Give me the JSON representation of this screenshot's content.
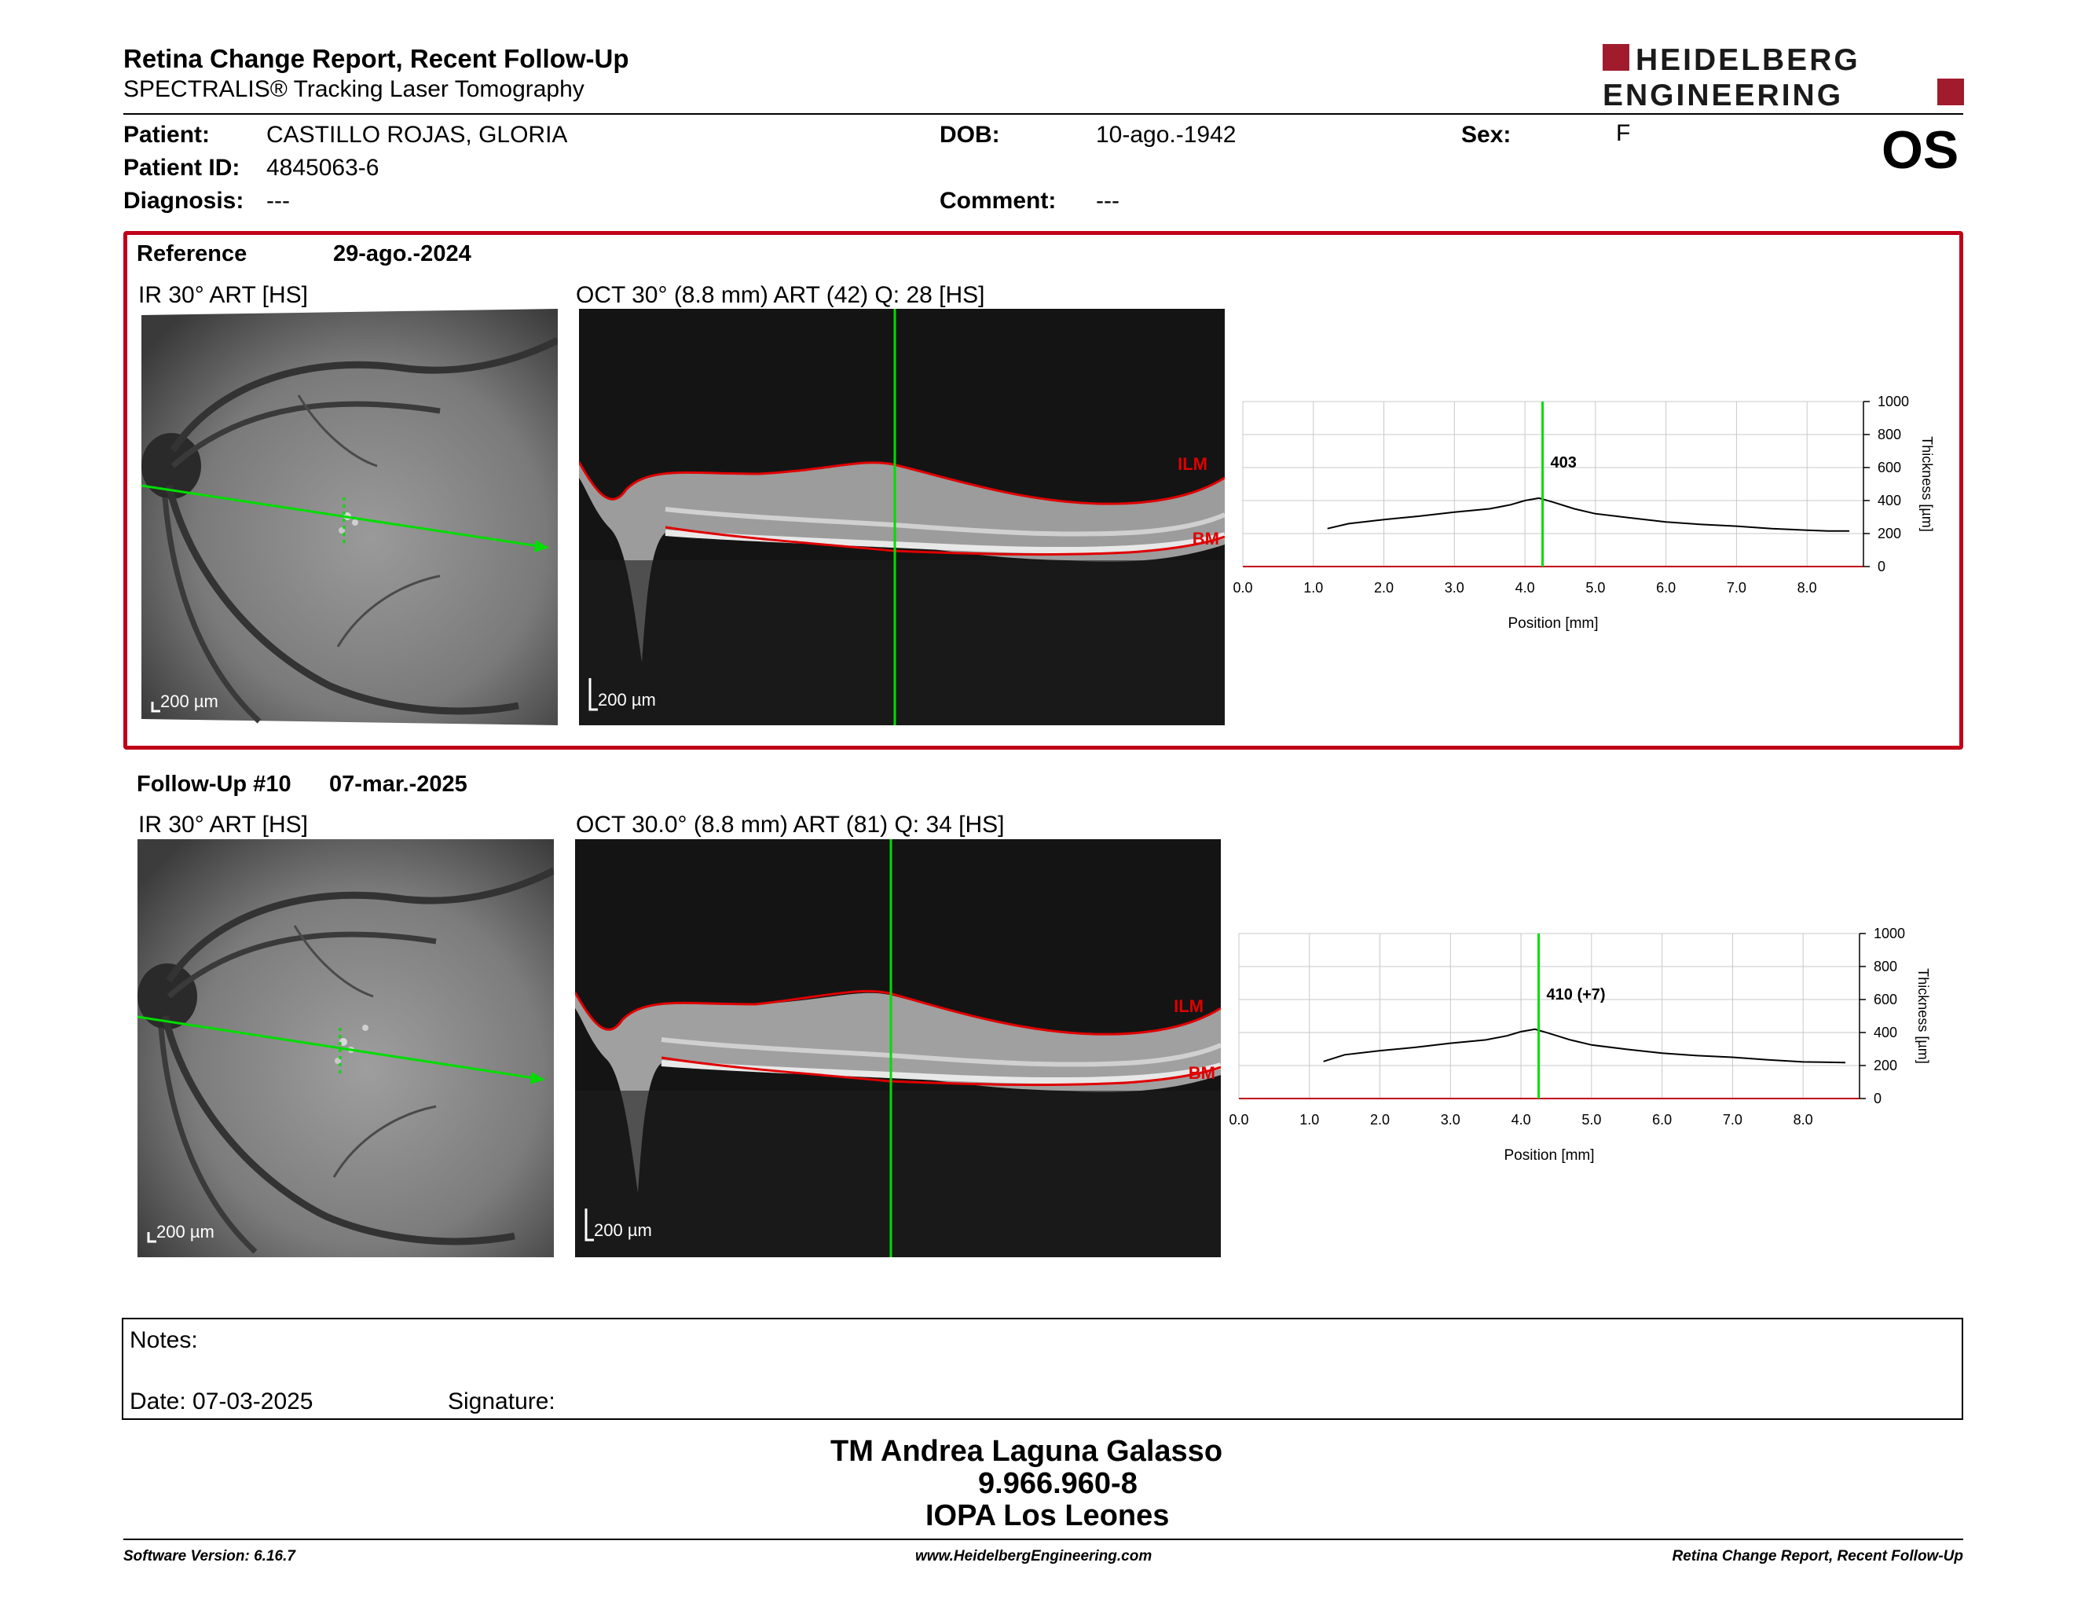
{
  "header": {
    "title": "Retina Change Report, Recent Follow-Up",
    "subtitle": "SPECTRALIS® Tracking Laser Tomography",
    "logo_line1": "HEIDELBERG",
    "logo_line2": "ENGINEERING",
    "eye": "OS"
  },
  "patient": {
    "patient_label": "Patient:",
    "patient_name": "CASTILLO ROJAS, GLORIA",
    "id_label": "Patient ID:",
    "id_value": "4845063-6",
    "diagnosis_label": "Diagnosis:",
    "diagnosis_value": "---",
    "dob_label": "DOB:",
    "dob_value": "10-ago.-1942",
    "comment_label": "Comment:",
    "comment_value": "---",
    "sex_label": "Sex:",
    "sex_value": "F"
  },
  "reference": {
    "label": "Reference",
    "date": "29-ago.-2024",
    "ir_label": "IR 30° ART [HS]",
    "oct_label": "OCT 30° (8.8 mm) ART (42) Q: 28 [HS]",
    "ir_scale": "200 µm",
    "oct_scale": "200 µm",
    "ilm": "ILM",
    "bm": "BM",
    "marker_value": "403"
  },
  "followup": {
    "label": "Follow-Up #10",
    "date": "07-mar.-2025",
    "ir_label": "IR 30° ART [HS]",
    "oct_label": "OCT 30.0° (8.8 mm) ART (81) Q: 34 [HS]",
    "ir_scale": "200 µm",
    "oct_scale": "200 µm",
    "ilm": "ILM",
    "bm": "BM",
    "marker_value": "410 (+7)"
  },
  "chart_data": [
    {
      "type": "line",
      "xlabel": "Position [mm]",
      "ylabel": "Thickness [µm]",
      "xlim": [
        0.0,
        8.8
      ],
      "ylim": [
        0,
        1000
      ],
      "x_ticks": [
        "0.0",
        "1.0",
        "2.0",
        "3.0",
        "4.0",
        "5.0",
        "6.0",
        "7.0",
        "8.0"
      ],
      "y_ticks": [
        "0",
        "200",
        "400",
        "600",
        "800",
        "1000"
      ],
      "grid": true,
      "marker_x": 4.25,
      "marker_label": "403",
      "x": [
        1.2,
        1.5,
        2.0,
        2.5,
        3.0,
        3.5,
        3.8,
        4.0,
        4.2,
        4.4,
        4.7,
        5.0,
        5.5,
        6.0,
        6.5,
        7.0,
        7.5,
        8.0,
        8.3,
        8.6
      ],
      "y": [
        230,
        260,
        285,
        305,
        330,
        350,
        375,
        400,
        415,
        390,
        350,
        320,
        295,
        270,
        255,
        245,
        230,
        220,
        215,
        215
      ]
    },
    {
      "type": "line",
      "xlabel": "Position [mm]",
      "ylabel": "Thickness [µm]",
      "xlim": [
        0.0,
        8.8
      ],
      "ylim": [
        0,
        1000
      ],
      "x_ticks": [
        "0.0",
        "1.0",
        "2.0",
        "3.0",
        "4.0",
        "5.0",
        "6.0",
        "7.0",
        "8.0"
      ],
      "y_ticks": [
        "0",
        "200",
        "400",
        "600",
        "800",
        "1000"
      ],
      "grid": true,
      "marker_x": 4.25,
      "marker_label": "410 (+7)",
      "x": [
        1.2,
        1.5,
        2.0,
        2.5,
        3.0,
        3.5,
        3.8,
        4.0,
        4.2,
        4.4,
        4.7,
        5.0,
        5.5,
        6.0,
        6.5,
        7.0,
        7.5,
        8.0,
        8.3,
        8.6
      ],
      "y": [
        225,
        265,
        290,
        310,
        335,
        355,
        380,
        405,
        420,
        395,
        355,
        325,
        298,
        275,
        260,
        250,
        235,
        222,
        220,
        218
      ]
    }
  ],
  "notes": {
    "notes_label": "Notes:",
    "date_label": "Date: 07-03-2025",
    "signature_label": "Signature:"
  },
  "signature": {
    "name": "TM Andrea Laguna Galasso",
    "rut": "9.966.960-8",
    "org": "IOPA Los Leones"
  },
  "footer": {
    "left": "Software Version: 6.16.7",
    "center": "www.HeidelbergEngineering.com",
    "right": "Retina Change Report, Recent Follow-Up"
  }
}
